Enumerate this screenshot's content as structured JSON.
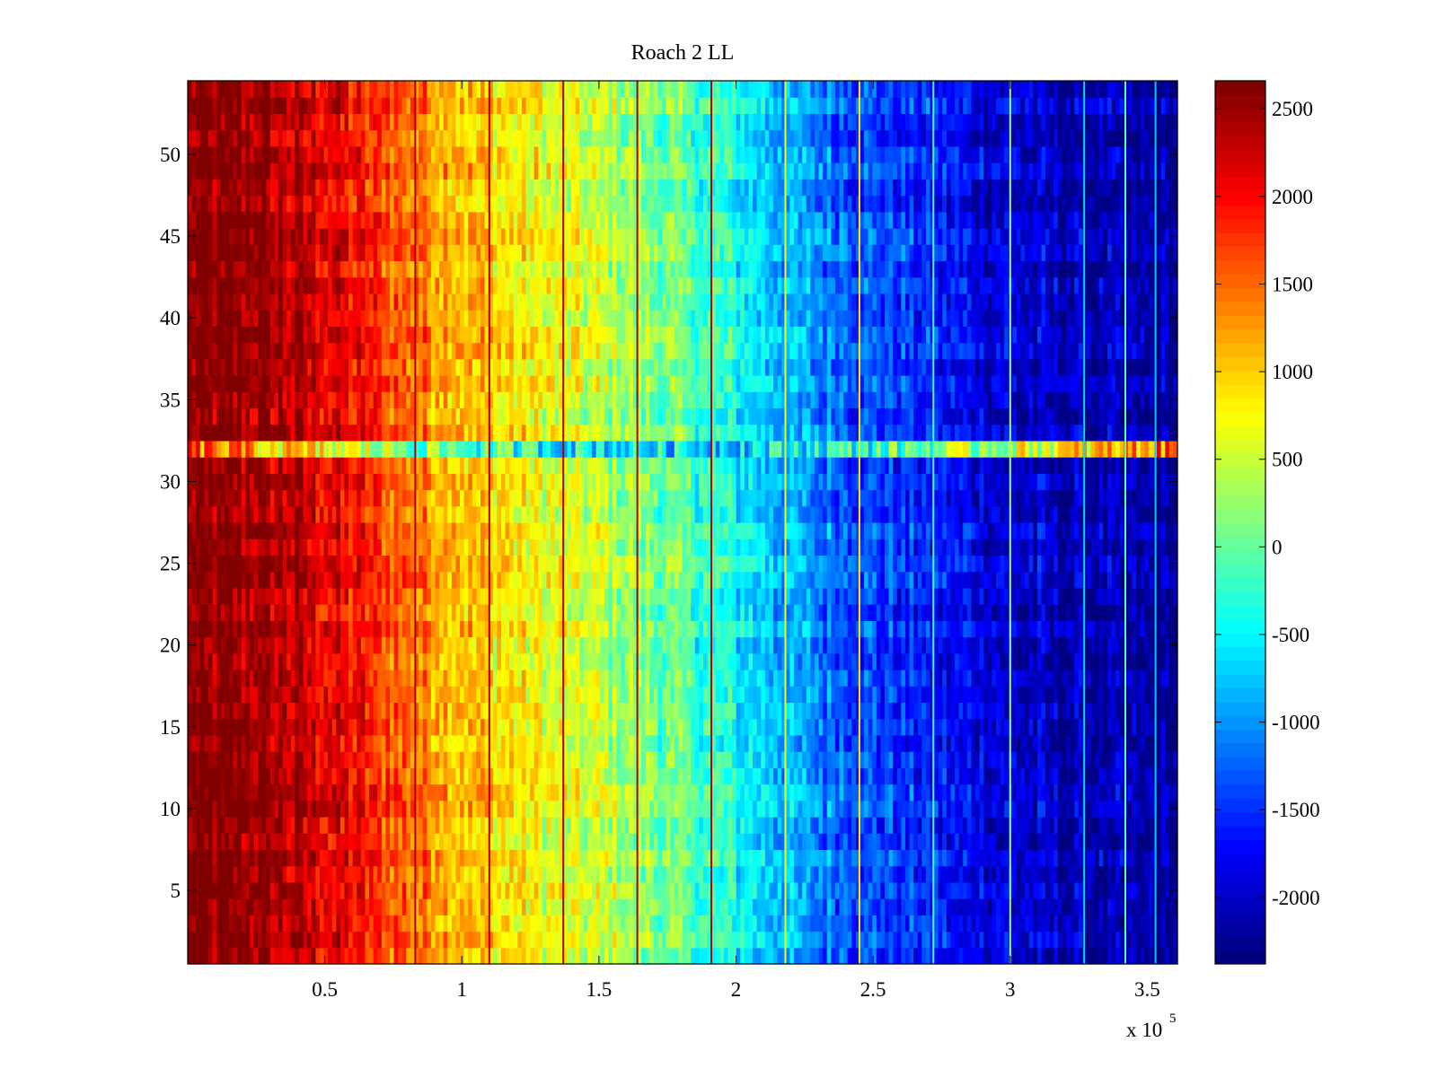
{
  "chart_data": {
    "type": "heatmap",
    "title": "Roach 2 LL",
    "xlabel": "",
    "ylabel": "",
    "x_range": [
      0,
      361000
    ],
    "y_range": [
      0.5,
      54.5
    ],
    "rows": 54,
    "x_multiplier_label": "x 10",
    "x_multiplier_exponent": "5",
    "x_ticks": [
      0.5,
      1,
      1.5,
      2,
      2.5,
      3,
      3.5
    ],
    "x_tick_labels": [
      "0.5",
      "1",
      "1.5",
      "2",
      "2.5",
      "3",
      "3.5"
    ],
    "y_ticks": [
      5,
      10,
      15,
      20,
      25,
      30,
      35,
      40,
      45,
      50
    ],
    "y_tick_labels": [
      "5",
      "10",
      "15",
      "20",
      "25",
      "30",
      "35",
      "40",
      "45",
      "50"
    ],
    "colorbar": {
      "colormap": "jet",
      "range": [
        -2380,
        2660
      ],
      "ticks": [
        -2000,
        -1500,
        -1000,
        -500,
        0,
        500,
        1000,
        1500,
        2000,
        2500
      ],
      "tick_labels": [
        "-2000",
        "-1500",
        "-1000",
        "-500",
        "0",
        "500",
        "1000",
        "1500",
        "2000",
        "2500"
      ]
    },
    "column_profile": {
      "x": [
        0,
        25000,
        50000,
        75000,
        100000,
        125000,
        150000,
        175000,
        200000,
        225000,
        250000,
        275000,
        300000,
        325000,
        361000
      ],
      "values": [
        2650,
        2550,
        2200,
        1650,
        1150,
        750,
        450,
        50,
        -450,
        -1000,
        -1400,
        -1700,
        -1950,
        -2150,
        -2300
      ]
    },
    "anomalous_row": {
      "row": 32,
      "description": "row 32 shows a distinct, noisier profile than the other rows"
    },
    "vertical_line_x": [
      83000,
      110000,
      137000,
      164000,
      191000,
      218000,
      245000,
      272000,
      300000,
      327000,
      342000,
      353000
    ]
  }
}
